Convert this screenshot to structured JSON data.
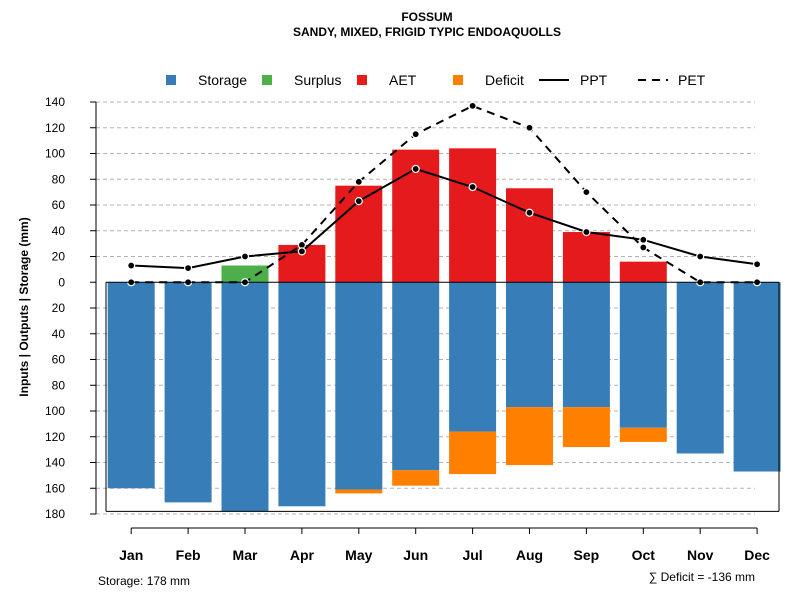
{
  "chart_data": {
    "type": "bar",
    "title": "FOSSUM",
    "subtitle": "SANDY, MIXED, FRIGID TYPIC ENDOAQUOLLS",
    "ylabel": "Inputs | Outputs | Storage    (mm)",
    "categories": [
      "Jan",
      "Feb",
      "Mar",
      "Apr",
      "May",
      "Jun",
      "Jul",
      "Aug",
      "Sep",
      "Oct",
      "Nov",
      "Dec"
    ],
    "ylim": [
      -180,
      140
    ],
    "yticks": [
      140,
      120,
      100,
      80,
      60,
      40,
      20,
      0,
      -20,
      -40,
      -60,
      -80,
      -100,
      -120,
      -140,
      -160,
      -180
    ],
    "ytick_labels": [
      "140",
      "120",
      "100",
      "80",
      "60",
      "40",
      "20",
      "0",
      "20",
      "40",
      "60",
      "80",
      "100",
      "120",
      "140",
      "160",
      "180"
    ],
    "series": [
      {
        "name": "Storage",
        "type": "bar",
        "color": "#377EB8",
        "values": [
          -160,
          -171,
          -178,
          -174,
          -161,
          -146,
          -116,
          -97,
          -97,
          -113,
          -133,
          -147
        ]
      },
      {
        "name": "Surplus",
        "type": "bar",
        "color": "#4DAF4A",
        "values": [
          0,
          0,
          13,
          0,
          0,
          0,
          0,
          0,
          0,
          0,
          0,
          0
        ]
      },
      {
        "name": "AET",
        "type": "bar",
        "color": "#E41A1C",
        "values": [
          0,
          0,
          0,
          29,
          75,
          103,
          104,
          73,
          39,
          16,
          0,
          0
        ]
      },
      {
        "name": "Deficit",
        "type": "bar",
        "color": "#FF7F00",
        "values": [
          0,
          0,
          0,
          0,
          -3,
          -12,
          -33,
          -45,
          -31,
          -11,
          0,
          0
        ]
      },
      {
        "name": "PPT",
        "type": "line",
        "style": "solid",
        "color": "#000000",
        "values": [
          13,
          11,
          20,
          24,
          63,
          88,
          74,
          54,
          39,
          33,
          20,
          14
        ]
      },
      {
        "name": "PET",
        "type": "line",
        "style": "dashed",
        "color": "#000000",
        "values": [
          0,
          0,
          0,
          29,
          78,
          115,
          137,
          120,
          70,
          27,
          0,
          0
        ]
      }
    ],
    "storage_capacity": -178,
    "footer_left": "Storage: 178 mm",
    "footer_right": "∑ Deficit = -136 mm",
    "grid": true,
    "legend_position": "top"
  }
}
